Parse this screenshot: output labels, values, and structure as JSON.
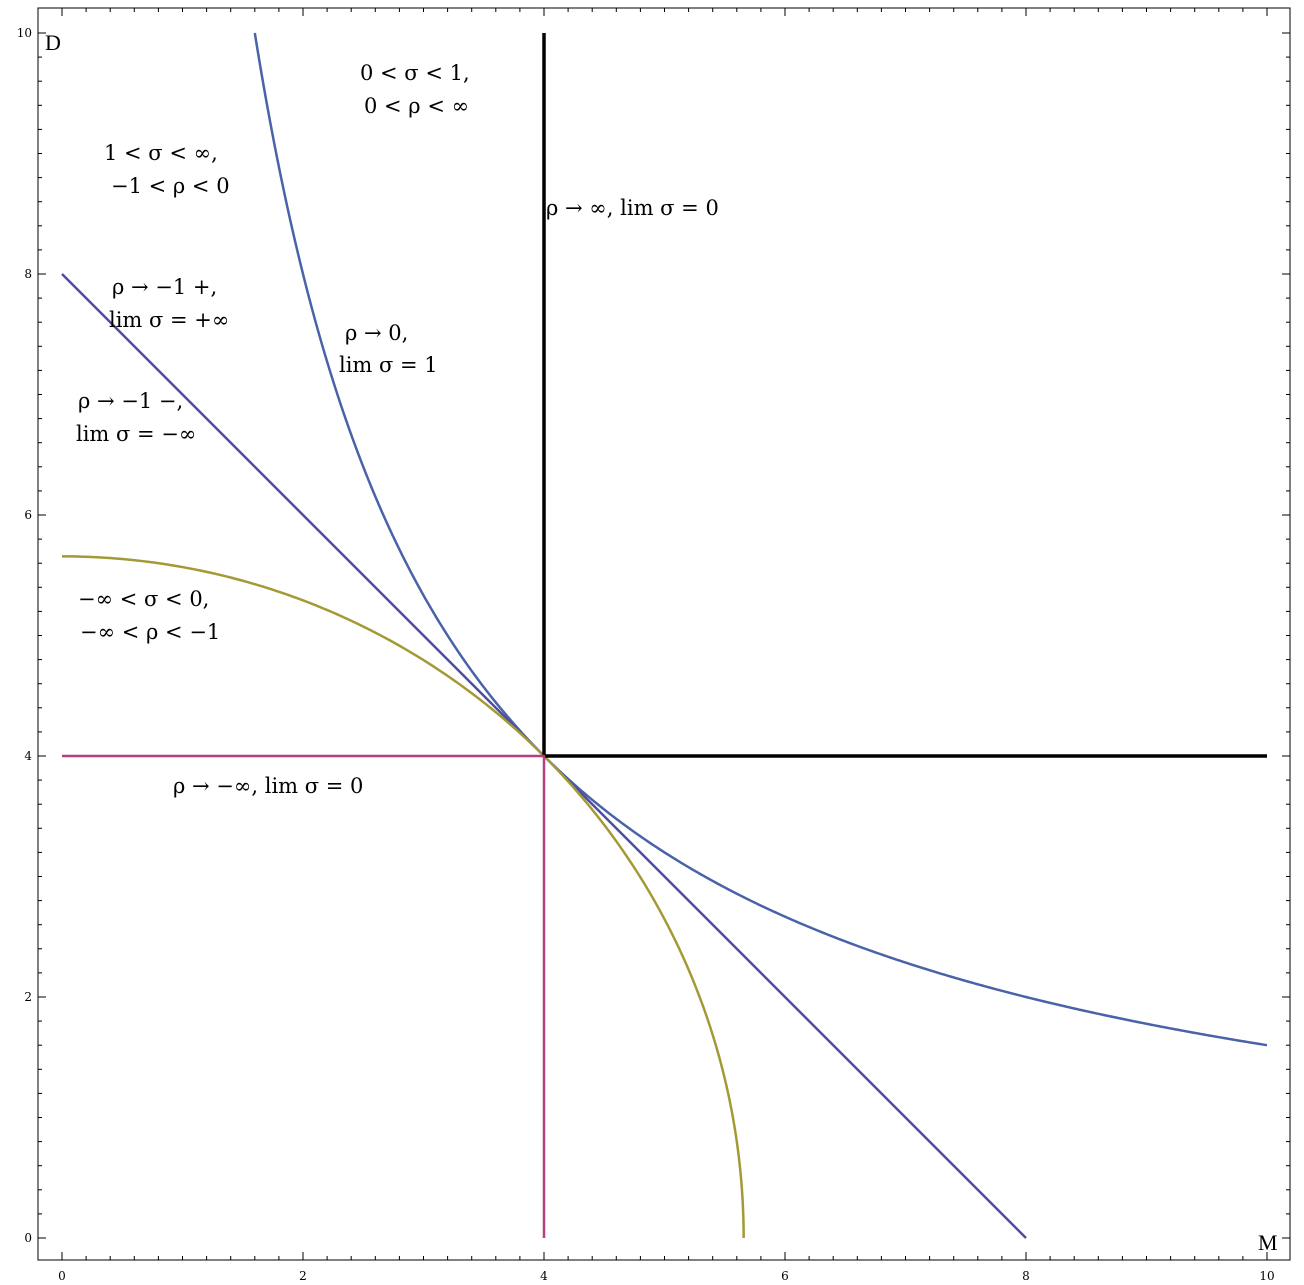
{
  "chart_data": {
    "type": "line",
    "xlabel": "M",
    "ylabel": "D",
    "xlim": [
      0,
      10
    ],
    "ylim": [
      0,
      10
    ],
    "xticks": [
      0,
      2,
      4,
      6,
      8,
      10
    ],
    "yticks": [
      0,
      2,
      4,
      6,
      8,
      10
    ],
    "xtick_labels": [
      "0",
      "2",
      "4",
      "6",
      "8",
      "10"
    ],
    "ytick_labels": [
      "0",
      "2",
      "4",
      "6",
      "8",
      "10"
    ],
    "grid": false,
    "series": [
      {
        "key": "rho_zero",
        "rho": 0,
        "color": "#4a62a8",
        "x": [
          1.6,
          2,
          2.5,
          3,
          3.5,
          4,
          5,
          6,
          7,
          8,
          9,
          10
        ],
        "y": [
          10,
          8,
          6.4,
          5.33,
          4.57,
          4,
          3.2,
          2.67,
          2.29,
          2,
          1.78,
          1.6
        ]
      },
      {
        "key": "rho_minus_one",
        "rho": -1,
        "color": "#4d4da3",
        "x": [
          0,
          8
        ],
        "y": [
          8,
          0
        ]
      },
      {
        "key": "rho_minus_two",
        "rho": -2,
        "color": "#a39a35",
        "x": [
          0,
          1,
          2,
          3,
          4,
          5,
          5.5,
          5.657
        ],
        "y": [
          5.657,
          5.568,
          5.292,
          4.796,
          4,
          2.646,
          1.323,
          0
        ]
      },
      {
        "key": "rho_plus_inf",
        "color": "#000000",
        "x": [
          4,
          4,
          10
        ],
        "y": [
          10,
          4,
          4
        ]
      },
      {
        "key": "rho_minus_inf",
        "color": "#b5407f",
        "x": [
          0,
          4,
          4
        ],
        "y": [
          4,
          4,
          0
        ]
      }
    ],
    "annotations": [
      {
        "lines": [
          "0 < σ < 1,",
          "0 < ρ < ∞"
        ]
      },
      {
        "lines": [
          "1 < σ < ∞,",
          "−1 < ρ < 0"
        ]
      },
      {
        "lines": [
          "ρ → ∞,  lim σ = 0"
        ]
      },
      {
        "lines": [
          "ρ → −1 +,",
          "lim σ = +∞"
        ]
      },
      {
        "lines": [
          "ρ → 0,",
          "lim σ = 1"
        ]
      },
      {
        "lines": [
          "ρ → −1 −,",
          "lim σ = −∞"
        ]
      },
      {
        "lines": [
          "−∞ < σ < 0,",
          "−∞ < ρ < −1"
        ]
      },
      {
        "lines": [
          "ρ → −∞,  lim σ = 0"
        ]
      }
    ]
  }
}
